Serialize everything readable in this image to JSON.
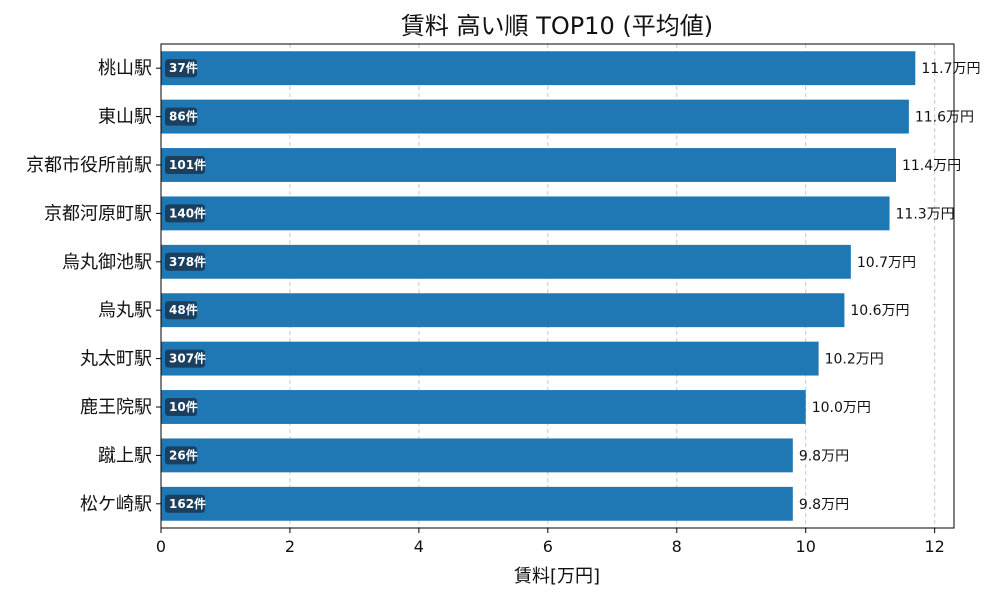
{
  "chart_data": {
    "type": "bar",
    "orientation": "horizontal",
    "title": "賃料 高い順 TOP10 (平均値)",
    "xlabel": "賃料[万円]",
    "ylabel": "",
    "xlim": [
      0,
      12.3
    ],
    "xticks": [
      0,
      2,
      4,
      6,
      8,
      10,
      12
    ],
    "grid": "x-dashed",
    "bar_color": "#1f77b4",
    "count_badge_color": "#1b3f5e",
    "categories": [
      "桃山駅",
      "東山駅",
      "京都市役所前駅",
      "京都河原町駅",
      "烏丸御池駅",
      "烏丸駅",
      "丸太町駅",
      "鹿王院駅",
      "蹴上駅",
      "松ケ崎駅"
    ],
    "values": [
      11.7,
      11.6,
      11.4,
      11.3,
      10.7,
      10.6,
      10.2,
      10.0,
      9.8,
      9.8
    ],
    "value_labels": [
      "11.7万円",
      "11.6万円",
      "11.4万円",
      "11.3万円",
      "10.7万円",
      "10.6万円",
      "10.2万円",
      "10.0万円",
      "9.8万円",
      "9.8万円"
    ],
    "counts": [
      "37件",
      "86件",
      "101件",
      "140件",
      "378件",
      "48件",
      "307件",
      "10件",
      "26件",
      "162件"
    ]
  }
}
